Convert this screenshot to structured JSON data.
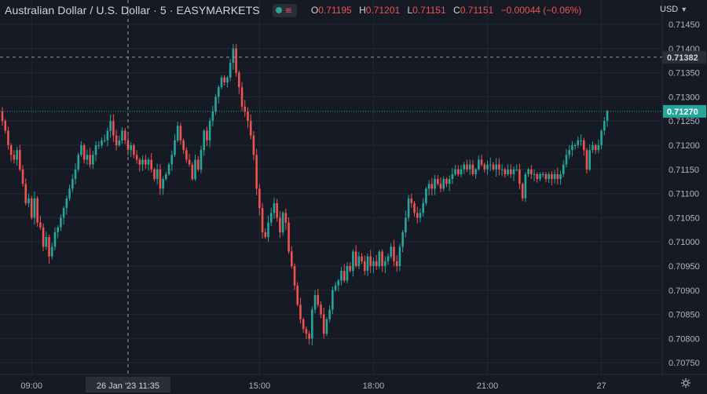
{
  "header": {
    "title": "Australian Dollar / U.S. Dollar · 5 · EASYMARKETS",
    "ohlc": {
      "o_label": "O",
      "o_value": "0.71195",
      "h_label": "H",
      "h_value": "0.71201",
      "l_label": "L",
      "l_value": "0.71151",
      "c_label": "C",
      "c_value": "0.71151",
      "change": "−0.00044 (−0.06%)"
    }
  },
  "currency": {
    "label": "USD",
    "chevron_icon": "chevron-down-icon"
  },
  "settings_icon": "gear-icon",
  "colors": {
    "background": "#161a25",
    "up": "#26a69a",
    "down": "#ef5350",
    "grid": "#242834",
    "text": "#b2b5be",
    "crosshair": "#9598a1"
  },
  "crosshair": {
    "time_label": "26 Jan '23   11:35",
    "price_label": "0.71382",
    "price": 0.71382
  },
  "last_price": {
    "label": "0.71270",
    "price": 0.7127
  },
  "chart_data": {
    "type": "candlestick",
    "y_ticks": [
      "0.71450",
      "0.71400",
      "0.71350",
      "0.71300",
      "0.71250",
      "0.71200",
      "0.71150",
      "0.71100",
      "0.71050",
      "0.71000",
      "0.70950",
      "0.70900",
      "0.70850",
      "0.70800",
      "0.70750"
    ],
    "y_values": [
      0.7145,
      0.714,
      0.7135,
      0.713,
      0.7125,
      0.712,
      0.7115,
      0.711,
      0.7105,
      0.71,
      0.7095,
      0.709,
      0.7085,
      0.708,
      0.7075
    ],
    "x_ticks": [
      {
        "label": "09:00",
        "index": 10
      },
      {
        "label": "15:00",
        "index": 88
      },
      {
        "label": "18:00",
        "index": 127
      },
      {
        "label": "21:00",
        "index": 166
      },
      {
        "label": "27",
        "index": 205
      }
    ],
    "ylim": [
      0.70728,
      0.71478
    ],
    "grid": true,
    "crosshair_index": 43,
    "series": {
      "close": [
        0.7125,
        0.7123,
        0.712,
        0.7118,
        0.7117,
        0.7119,
        0.7115,
        0.7112,
        0.7108,
        0.7109,
        0.7105,
        0.7109,
        0.7104,
        0.7103,
        0.7099,
        0.7101,
        0.7097,
        0.7099,
        0.7102,
        0.7103,
        0.7105,
        0.7107,
        0.7109,
        0.7111,
        0.7113,
        0.7115,
        0.7118,
        0.712,
        0.7117,
        0.7118,
        0.7116,
        0.7118,
        0.712,
        0.712,
        0.7121,
        0.7121,
        0.7123,
        0.7125,
        0.7122,
        0.712,
        0.7121,
        0.7123,
        0.7121,
        0.7119,
        0.712,
        0.7118,
        0.7117,
        0.7116,
        0.7117,
        0.7116,
        0.7117,
        0.7115,
        0.7113,
        0.7115,
        0.7111,
        0.7113,
        0.7114,
        0.7116,
        0.7118,
        0.7121,
        0.7124,
        0.7121,
        0.7119,
        0.7117,
        0.7116,
        0.7113,
        0.7117,
        0.7115,
        0.7119,
        0.7123,
        0.7121,
        0.7125,
        0.7127,
        0.713,
        0.7132,
        0.7134,
        0.7133,
        0.7134,
        0.7137,
        0.714,
        0.7135,
        0.7132,
        0.7128,
        0.7127,
        0.7125,
        0.7122,
        0.7118,
        0.7111,
        0.7107,
        0.7102,
        0.7101,
        0.7104,
        0.7106,
        0.7108,
        0.7105,
        0.7102,
        0.7106,
        0.7104,
        0.7098,
        0.7095,
        0.7091,
        0.7087,
        0.7084,
        0.7082,
        0.7081,
        0.708,
        0.7086,
        0.7089,
        0.7087,
        0.7085,
        0.7081,
        0.7084,
        0.7086,
        0.709,
        0.7091,
        0.7092,
        0.7094,
        0.7092,
        0.7095,
        0.7094,
        0.7098,
        0.7095,
        0.7097,
        0.7096,
        0.7094,
        0.7097,
        0.7095,
        0.7096,
        0.7095,
        0.7098,
        0.7095,
        0.7096,
        0.7097,
        0.7099,
        0.7096,
        0.7095,
        0.7099,
        0.7102,
        0.7105,
        0.7109,
        0.7108,
        0.7106,
        0.7105,
        0.7106,
        0.7108,
        0.7111,
        0.7112,
        0.7111,
        0.7113,
        0.7112,
        0.7111,
        0.7113,
        0.7112,
        0.7113,
        0.7114,
        0.7115,
        0.7114,
        0.7115,
        0.7116,
        0.7115,
        0.7116,
        0.7114,
        0.7115,
        0.7117,
        0.7116,
        0.7115,
        0.7116,
        0.7116,
        0.7115,
        0.7116,
        0.7115,
        0.7115,
        0.7114,
        0.7115,
        0.7114,
        0.7115,
        0.7115,
        0.7112,
        0.7109,
        0.7114,
        0.7115,
        0.7114,
        0.7114,
        0.7113,
        0.7114,
        0.7114,
        0.7113,
        0.7114,
        0.7113,
        0.7114,
        0.7113,
        0.7114,
        0.7116,
        0.7118,
        0.7119,
        0.712,
        0.712,
        0.7121,
        0.7121,
        0.7119,
        0.7115,
        0.7119,
        0.712,
        0.7119,
        0.712,
        0.7123,
        0.7125,
        0.7127
      ]
    }
  }
}
